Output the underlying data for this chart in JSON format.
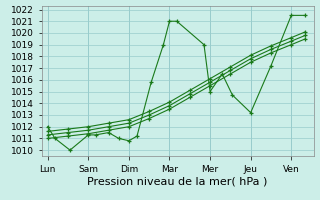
{
  "x_labels": [
    "Lun",
    "Sam",
    "Dim",
    "Mar",
    "Mer",
    "Jeu",
    "Ven"
  ],
  "x_positions": [
    0,
    1,
    2,
    3,
    4,
    5,
    6
  ],
  "series_volatile": {
    "x": [
      0,
      0.18,
      0.55,
      1.0,
      1.18,
      1.5,
      1.75,
      2.0,
      2.2,
      2.55,
      2.85,
      3.0,
      3.18,
      3.85,
      4.0,
      4.3,
      4.55,
      5.0,
      5.5,
      6.0,
      6.35
    ],
    "y": [
      1012,
      1011,
      1010,
      1011.3,
      1011.3,
      1011.5,
      1011.0,
      1010.8,
      1011.2,
      1015.8,
      1019.0,
      1021.0,
      1021.0,
      1019.0,
      1015.0,
      1016.5,
      1014.7,
      1013.2,
      1017.2,
      1021.5,
      1021.5
    ]
  },
  "trend_lines": [
    {
      "x": [
        0,
        0.5,
        1.0,
        1.5,
        2.0,
        2.5,
        3.0,
        3.5,
        4.0,
        4.5,
        5.0,
        5.5,
        6.0,
        6.35
      ],
      "y": [
        1011.0,
        1011.2,
        1011.4,
        1011.7,
        1012.0,
        1012.7,
        1013.5,
        1014.5,
        1015.5,
        1016.5,
        1017.5,
        1018.3,
        1019.0,
        1019.5
      ]
    },
    {
      "x": [
        0,
        0.5,
        1.0,
        1.5,
        2.0,
        2.5,
        3.0,
        3.5,
        4.0,
        4.5,
        5.0,
        5.5,
        6.0,
        6.35
      ],
      "y": [
        1011.3,
        1011.5,
        1011.7,
        1012.0,
        1012.3,
        1013.0,
        1013.8,
        1014.8,
        1015.8,
        1016.8,
        1017.8,
        1018.6,
        1019.3,
        1019.8
      ]
    },
    {
      "x": [
        0,
        0.5,
        1.0,
        1.5,
        2.0,
        2.5,
        3.0,
        3.5,
        4.0,
        4.5,
        5.0,
        5.5,
        6.0,
        6.35
      ],
      "y": [
        1011.6,
        1011.8,
        1012.0,
        1012.3,
        1012.6,
        1013.3,
        1014.1,
        1015.1,
        1016.1,
        1017.1,
        1018.1,
        1018.9,
        1019.6,
        1020.1
      ]
    }
  ],
  "line_color": "#1a7a1a",
  "bg_color": "#cceee8",
  "grid_color": "#99cccc",
  "ylim": [
    1009.5,
    1022.3
  ],
  "yticks": [
    1010,
    1011,
    1012,
    1013,
    1014,
    1015,
    1016,
    1017,
    1018,
    1019,
    1020,
    1021,
    1022
  ],
  "xlim": [
    -0.15,
    6.55
  ],
  "xlabel": "Pression niveau de la mer( hPa )",
  "tick_fontsize": 6.5,
  "xlabel_fontsize": 8
}
